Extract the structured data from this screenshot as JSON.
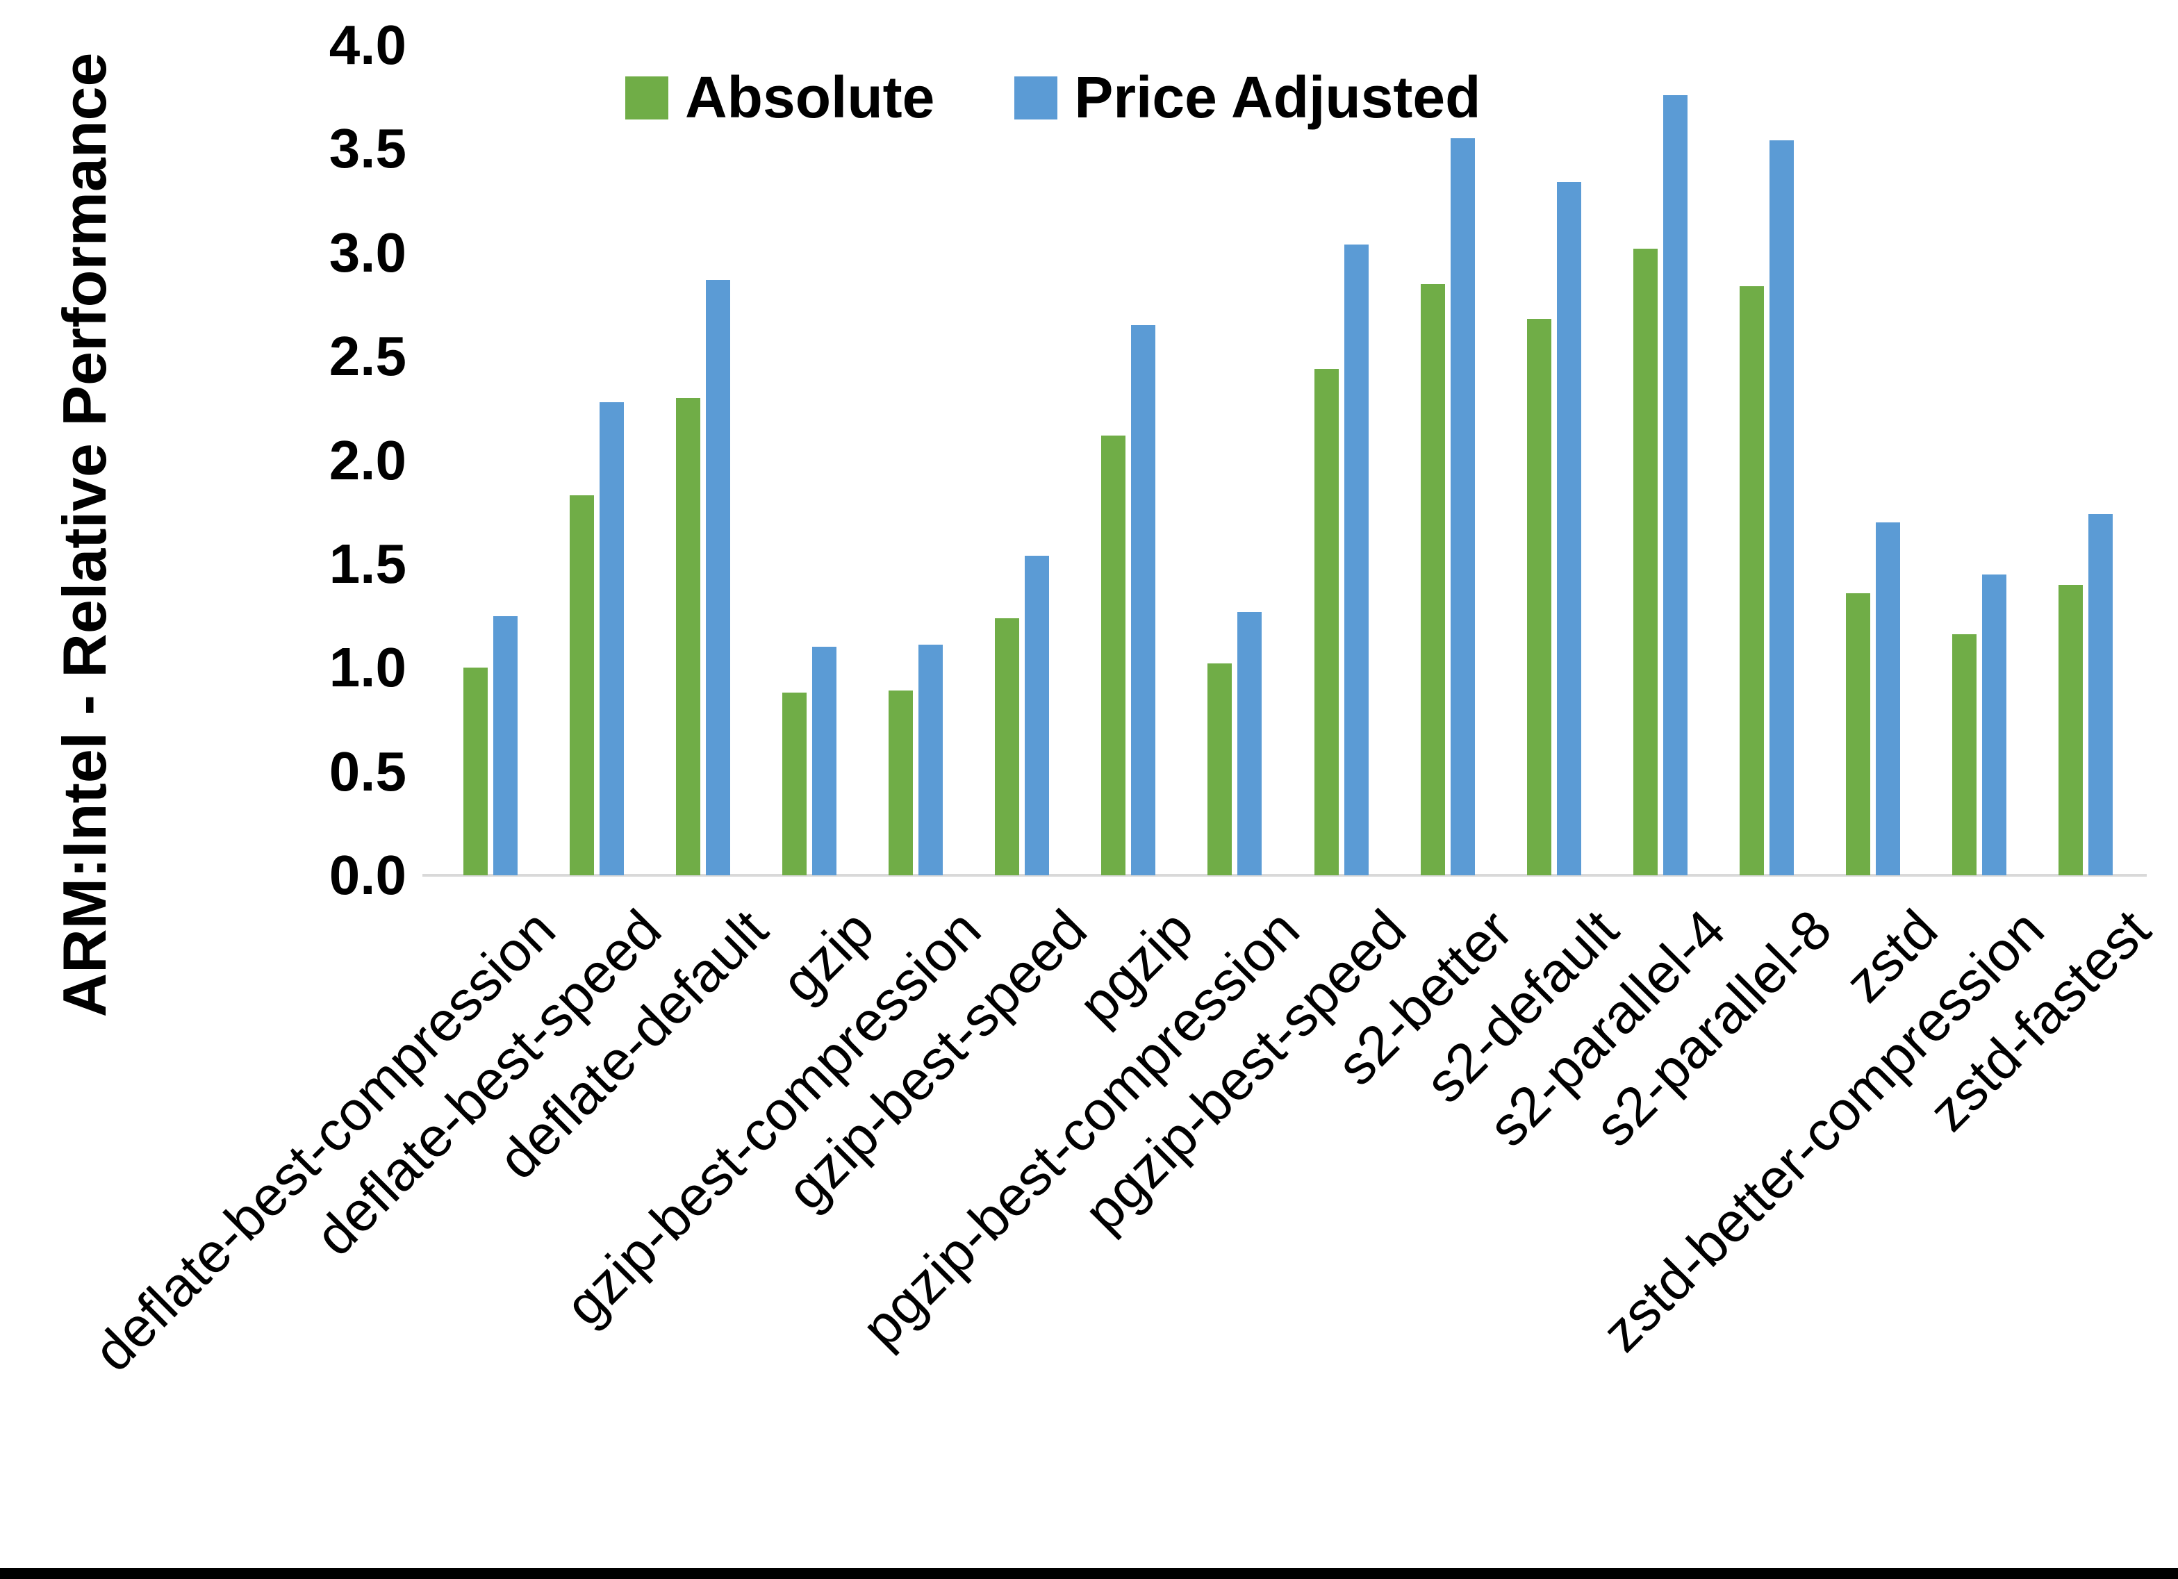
{
  "chart_data": {
    "type": "bar",
    "title": "",
    "ylabel": "ARM:Intel - Relative Performance",
    "xlabel": "",
    "ylim": [
      0.0,
      4.0
    ],
    "ytick_step": 0.5,
    "yticks": [
      "4.0",
      "3.5",
      "3.0",
      "2.5",
      "2.0",
      "1.5",
      "1.0",
      "0.5",
      "0.0"
    ],
    "grid": false,
    "legend_position": "top-center",
    "axis_line_color": "#d9d9d9",
    "categories": [
      "deflate-best-compression",
      "deflate-best-speed",
      "deflate-default",
      "gzip",
      "gzip-best-compression",
      "gzip-best-speed",
      "pgzip",
      "pgzip-best-compression",
      "pgzip-best-speed",
      "s2-better",
      "s2-default",
      "s2-parallel-4",
      "s2-parallel-8",
      "zstd",
      "zstd-better-compression",
      "zstd-fastest"
    ],
    "series": [
      {
        "name": "Absolute",
        "color": "#70AD47",
        "values": [
          1.0,
          1.83,
          2.3,
          0.88,
          0.89,
          1.24,
          2.12,
          1.02,
          2.44,
          2.85,
          2.68,
          3.02,
          2.84,
          1.36,
          1.16,
          1.4
        ]
      },
      {
        "name": "Price Adjusted",
        "color": "#5B9BD5",
        "values": [
          1.25,
          2.28,
          2.87,
          1.1,
          1.11,
          1.54,
          2.65,
          1.27,
          3.04,
          3.55,
          3.34,
          3.76,
          3.54,
          1.7,
          1.45,
          1.74
        ]
      }
    ]
  }
}
